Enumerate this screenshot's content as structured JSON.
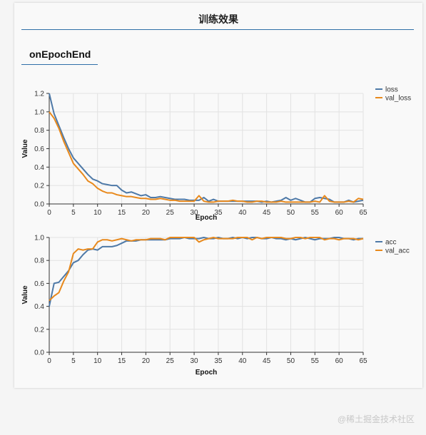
{
  "panel": {
    "title": "训练效果",
    "section_title": "onEpochEnd"
  },
  "watermark": "@稀土掘金技术社区",
  "colors": {
    "series_a": "#4e79a7",
    "series_b": "#e8891c",
    "grid": "#e2e2e2",
    "rule": "#2f6fa8"
  },
  "chart_data": [
    {
      "type": "line",
      "xlabel": "Epoch",
      "ylabel": "Value",
      "xlim": [
        0,
        65
      ],
      "ylim": [
        0,
        1.2
      ],
      "xticks": [
        0,
        5,
        10,
        15,
        20,
        25,
        30,
        35,
        40,
        45,
        50,
        55,
        60,
        65
      ],
      "yticks": [
        0.0,
        0.2,
        0.4,
        0.6,
        0.8,
        1.0,
        1.2
      ],
      "grid": true,
      "legend_position": "right",
      "series": [
        {
          "name": "loss",
          "color": "#4e79a7",
          "points": [
            [
              0,
              1.2
            ],
            [
              1,
              0.98
            ],
            [
              2,
              0.85
            ],
            [
              3,
              0.72
            ],
            [
              4,
              0.6
            ],
            [
              5,
              0.5
            ],
            [
              6,
              0.44
            ],
            [
              7,
              0.38
            ],
            [
              8,
              0.32
            ],
            [
              9,
              0.27
            ],
            [
              10,
              0.25
            ],
            [
              11,
              0.22
            ],
            [
              12,
              0.21
            ],
            [
              13,
              0.2
            ],
            [
              14,
              0.2
            ],
            [
              15,
              0.15
            ],
            [
              16,
              0.12
            ],
            [
              17,
              0.13
            ],
            [
              18,
              0.11
            ],
            [
              19,
              0.09
            ],
            [
              20,
              0.1
            ],
            [
              21,
              0.07
            ],
            [
              22,
              0.07
            ],
            [
              23,
              0.08
            ],
            [
              24,
              0.07
            ],
            [
              25,
              0.06
            ],
            [
              26,
              0.05
            ],
            [
              27,
              0.05
            ],
            [
              28,
              0.05
            ],
            [
              29,
              0.04
            ],
            [
              30,
              0.04
            ],
            [
              31,
              0.04
            ],
            [
              32,
              0.07
            ],
            [
              33,
              0.03
            ],
            [
              34,
              0.05
            ],
            [
              35,
              0.03
            ],
            [
              36,
              0.03
            ],
            [
              37,
              0.03
            ],
            [
              38,
              0.03
            ],
            [
              39,
              0.03
            ],
            [
              40,
              0.03
            ],
            [
              41,
              0.03
            ],
            [
              42,
              0.03
            ],
            [
              43,
              0.03
            ],
            [
              44,
              0.02
            ],
            [
              45,
              0.03
            ],
            [
              46,
              0.02
            ],
            [
              47,
              0.03
            ],
            [
              48,
              0.04
            ],
            [
              49,
              0.07
            ],
            [
              50,
              0.04
            ],
            [
              51,
              0.06
            ],
            [
              52,
              0.04
            ],
            [
              53,
              0.02
            ],
            [
              54,
              0.02
            ],
            [
              55,
              0.06
            ],
            [
              56,
              0.07
            ],
            [
              57,
              0.06
            ],
            [
              58,
              0.05
            ],
            [
              59,
              0.02
            ],
            [
              60,
              0.02
            ],
            [
              61,
              0.02
            ],
            [
              62,
              0.04
            ],
            [
              63,
              0.02
            ],
            [
              64,
              0.03
            ],
            [
              65,
              0.04
            ]
          ]
        },
        {
          "name": "val_loss",
          "color": "#e8891c",
          "points": [
            [
              0,
              1.0
            ],
            [
              1,
              0.93
            ],
            [
              2,
              0.82
            ],
            [
              3,
              0.68
            ],
            [
              4,
              0.56
            ],
            [
              5,
              0.44
            ],
            [
              6,
              0.38
            ],
            [
              7,
              0.32
            ],
            [
              8,
              0.25
            ],
            [
              9,
              0.22
            ],
            [
              10,
              0.17
            ],
            [
              11,
              0.14
            ],
            [
              12,
              0.12
            ],
            [
              13,
              0.12
            ],
            [
              14,
              0.1
            ],
            [
              15,
              0.09
            ],
            [
              16,
              0.08
            ],
            [
              17,
              0.08
            ],
            [
              18,
              0.07
            ],
            [
              19,
              0.06
            ],
            [
              20,
              0.06
            ],
            [
              21,
              0.05
            ],
            [
              22,
              0.05
            ],
            [
              23,
              0.06
            ],
            [
              24,
              0.05
            ],
            [
              25,
              0.04
            ],
            [
              26,
              0.04
            ],
            [
              27,
              0.03
            ],
            [
              28,
              0.03
            ],
            [
              29,
              0.03
            ],
            [
              30,
              0.03
            ],
            [
              31,
              0.09
            ],
            [
              32,
              0.03
            ],
            [
              33,
              0.02
            ],
            [
              34,
              0.02
            ],
            [
              35,
              0.03
            ],
            [
              36,
              0.03
            ],
            [
              37,
              0.03
            ],
            [
              38,
              0.04
            ],
            [
              39,
              0.03
            ],
            [
              40,
              0.03
            ],
            [
              41,
              0.02
            ],
            [
              42,
              0.02
            ],
            [
              43,
              0.03
            ],
            [
              44,
              0.03
            ],
            [
              45,
              0.02
            ],
            [
              46,
              0.02
            ],
            [
              47,
              0.02
            ],
            [
              48,
              0.03
            ],
            [
              49,
              0.02
            ],
            [
              50,
              0.02
            ],
            [
              51,
              0.02
            ],
            [
              52,
              0.02
            ],
            [
              53,
              0.02
            ],
            [
              54,
              0.02
            ],
            [
              55,
              0.03
            ],
            [
              56,
              0.02
            ],
            [
              57,
              0.09
            ],
            [
              58,
              0.03
            ],
            [
              59,
              0.02
            ],
            [
              60,
              0.02
            ],
            [
              61,
              0.02
            ],
            [
              62,
              0.03
            ],
            [
              63,
              0.02
            ],
            [
              64,
              0.06
            ],
            [
              65,
              0.05
            ]
          ]
        }
      ]
    },
    {
      "type": "line",
      "xlabel": "Epoch",
      "ylabel": "Value",
      "xlim": [
        0,
        65
      ],
      "ylim": [
        0,
        1.0
      ],
      "xticks": [
        0,
        5,
        10,
        15,
        20,
        25,
        30,
        35,
        40,
        45,
        50,
        55,
        60,
        65
      ],
      "yticks": [
        0.0,
        0.2,
        0.4,
        0.6,
        0.8,
        1.0
      ],
      "grid": true,
      "legend_position": "right",
      "series": [
        {
          "name": "acc",
          "color": "#4e79a7",
          "points": [
            [
              0,
              0.4
            ],
            [
              1,
              0.6
            ],
            [
              2,
              0.61
            ],
            [
              3,
              0.66
            ],
            [
              4,
              0.71
            ],
            [
              5,
              0.78
            ],
            [
              6,
              0.8
            ],
            [
              7,
              0.85
            ],
            [
              8,
              0.89
            ],
            [
              9,
              0.9
            ],
            [
              10,
              0.89
            ],
            [
              11,
              0.92
            ],
            [
              12,
              0.92
            ],
            [
              13,
              0.92
            ],
            [
              14,
              0.93
            ],
            [
              15,
              0.95
            ],
            [
              16,
              0.97
            ],
            [
              17,
              0.97
            ],
            [
              18,
              0.97
            ],
            [
              19,
              0.98
            ],
            [
              20,
              0.98
            ],
            [
              21,
              0.98
            ],
            [
              22,
              0.98
            ],
            [
              23,
              0.98
            ],
            [
              24,
              0.98
            ],
            [
              25,
              0.99
            ],
            [
              26,
              0.99
            ],
            [
              27,
              0.99
            ],
            [
              28,
              1.0
            ],
            [
              29,
              0.99
            ],
            [
              30,
              0.99
            ],
            [
              31,
              0.99
            ],
            [
              32,
              1.0
            ],
            [
              33,
              0.99
            ],
            [
              34,
              0.99
            ],
            [
              35,
              1.0
            ],
            [
              36,
              0.99
            ],
            [
              37,
              0.99
            ],
            [
              38,
              1.0
            ],
            [
              39,
              0.99
            ],
            [
              40,
              1.0
            ],
            [
              41,
              0.99
            ],
            [
              42,
              1.0
            ],
            [
              43,
              1.0
            ],
            [
              44,
              0.99
            ],
            [
              45,
              0.99
            ],
            [
              46,
              1.0
            ],
            [
              47,
              0.99
            ],
            [
              48,
              0.99
            ],
            [
              49,
              0.98
            ],
            [
              50,
              0.99
            ],
            [
              51,
              0.98
            ],
            [
              52,
              0.99
            ],
            [
              53,
              1.0
            ],
            [
              54,
              0.99
            ],
            [
              55,
              0.98
            ],
            [
              56,
              0.99
            ],
            [
              57,
              0.99
            ],
            [
              58,
              0.99
            ],
            [
              59,
              1.0
            ],
            [
              60,
              1.0
            ],
            [
              61,
              0.99
            ],
            [
              62,
              0.99
            ],
            [
              63,
              0.98
            ],
            [
              64,
              0.99
            ],
            [
              65,
              0.99
            ]
          ]
        },
        {
          "name": "val_acc",
          "color": "#e8891c",
          "points": [
            [
              0,
              0.45
            ],
            [
              1,
              0.49
            ],
            [
              2,
              0.52
            ],
            [
              3,
              0.62
            ],
            [
              4,
              0.7
            ],
            [
              5,
              0.86
            ],
            [
              6,
              0.9
            ],
            [
              7,
              0.89
            ],
            [
              8,
              0.9
            ],
            [
              9,
              0.9
            ],
            [
              10,
              0.96
            ],
            [
              11,
              0.98
            ],
            [
              12,
              0.98
            ],
            [
              13,
              0.97
            ],
            [
              14,
              0.98
            ],
            [
              15,
              0.99
            ],
            [
              16,
              0.98
            ],
            [
              17,
              0.97
            ],
            [
              18,
              0.98
            ],
            [
              19,
              0.98
            ],
            [
              20,
              0.98
            ],
            [
              21,
              0.99
            ],
            [
              22,
              0.99
            ],
            [
              23,
              0.99
            ],
            [
              24,
              0.98
            ],
            [
              25,
              1.0
            ],
            [
              26,
              1.0
            ],
            [
              27,
              1.0
            ],
            [
              28,
              1.0
            ],
            [
              29,
              1.0
            ],
            [
              30,
              1.0
            ],
            [
              31,
              0.96
            ],
            [
              32,
              0.98
            ],
            [
              33,
              0.99
            ],
            [
              34,
              1.0
            ],
            [
              35,
              0.99
            ],
            [
              36,
              0.99
            ],
            [
              37,
              0.99
            ],
            [
              38,
              0.99
            ],
            [
              39,
              1.0
            ],
            [
              40,
              1.0
            ],
            [
              41,
              1.0
            ],
            [
              42,
              0.98
            ],
            [
              43,
              1.0
            ],
            [
              44,
              0.99
            ],
            [
              45,
              1.0
            ],
            [
              46,
              1.0
            ],
            [
              47,
              1.0
            ],
            [
              48,
              1.0
            ],
            [
              49,
              0.99
            ],
            [
              50,
              0.99
            ],
            [
              51,
              1.0
            ],
            [
              52,
              1.0
            ],
            [
              53,
              0.99
            ],
            [
              54,
              1.0
            ],
            [
              55,
              1.0
            ],
            [
              56,
              1.0
            ],
            [
              57,
              0.98
            ],
            [
              58,
              0.99
            ],
            [
              59,
              0.99
            ],
            [
              60,
              0.98
            ],
            [
              61,
              0.99
            ],
            [
              62,
              0.99
            ],
            [
              63,
              0.99
            ],
            [
              64,
              0.98
            ],
            [
              65,
              0.99
            ]
          ]
        }
      ]
    }
  ]
}
